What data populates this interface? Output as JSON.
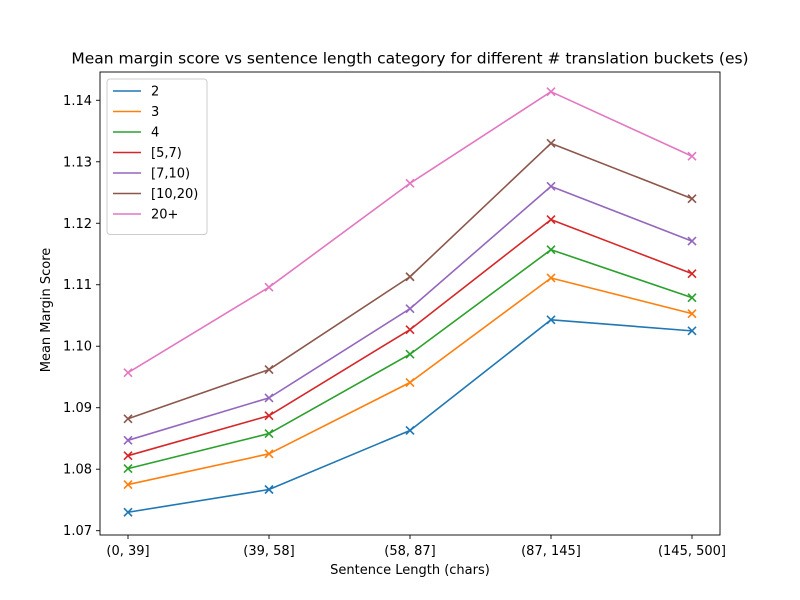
{
  "chart_data": {
    "type": "line",
    "title": "Mean margin score vs sentence length category for different # translation buckets (es)",
    "xlabel": "Sentence Length (chars)",
    "ylabel": "Mean Margin Score",
    "categories": [
      "(0, 39]",
      "(39, 58]",
      "(58, 87]",
      "(87, 145]",
      "(145, 500]"
    ],
    "ylim": [
      1.0693,
      1.1446
    ],
    "yticks": [
      1.07,
      1.08,
      1.09,
      1.1,
      1.11,
      1.12,
      1.13,
      1.14
    ],
    "ytick_labels": [
      "1.07",
      "1.08",
      "1.09",
      "1.10",
      "1.11",
      "1.12",
      "1.13",
      "1.14"
    ],
    "marker": "x",
    "grid": false,
    "legend_position": "upper-left",
    "series": [
      {
        "name": "2",
        "color": "#1f77b4",
        "values": [
          1.073,
          1.0767,
          1.0863,
          1.1043,
          1.1025
        ]
      },
      {
        "name": "3",
        "color": "#ff7f0e",
        "values": [
          1.0775,
          1.0825,
          1.0941,
          1.1111,
          1.1053
        ]
      },
      {
        "name": "4",
        "color": "#2ca02c",
        "values": [
          1.0801,
          1.0858,
          1.0987,
          1.1157,
          1.1079
        ]
      },
      {
        "name": "[5,7)",
        "color": "#d62728",
        "values": [
          1.0822,
          1.0887,
          1.1027,
          1.1206,
          1.1118
        ]
      },
      {
        "name": "[7,10)",
        "color": "#9467bd",
        "values": [
          1.0847,
          1.0916,
          1.1061,
          1.126,
          1.1171
        ]
      },
      {
        "name": "[10,20)",
        "color": "#8c564b",
        "values": [
          1.0882,
          1.0962,
          1.1113,
          1.133,
          1.124
        ]
      },
      {
        "name": "20+",
        "color": "#e377c2",
        "values": [
          1.0957,
          1.1096,
          1.1265,
          1.1414,
          1.1309
        ]
      }
    ]
  }
}
